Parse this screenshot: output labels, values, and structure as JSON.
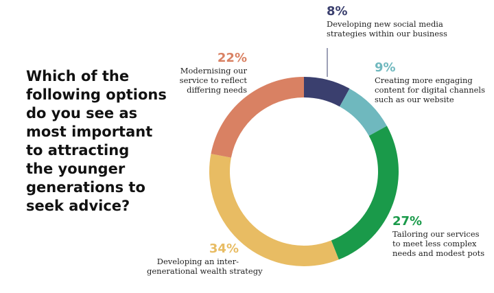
{
  "question": {
    "lines": [
      "Which of the",
      "following options",
      "do you see as",
      "most important",
      "to attracting",
      "the younger",
      "generations to",
      "seek advice?"
    ]
  },
  "chart_data": {
    "type": "pie",
    "variant": "donut",
    "slices": [
      {
        "percent_label": "8%",
        "value": 8,
        "color": "#3a3f6e",
        "description_lines": [
          "Developing new social media",
          "strategies within our business"
        ]
      },
      {
        "percent_label": "9%",
        "value": 9,
        "color": "#6fb8be",
        "description_lines": [
          "Creating more engaging",
          "content for digital channels",
          "such as our website"
        ]
      },
      {
        "percent_label": "27%",
        "value": 27,
        "color": "#1a9a4a",
        "description_lines": [
          "Tailoring our services",
          "to meet less complex",
          "needs and modest pots"
        ]
      },
      {
        "percent_label": "34%",
        "value": 34,
        "color": "#e8bc63",
        "description_lines": [
          "Developing an inter-",
          "generational wealth strategy"
        ]
      },
      {
        "percent_label": "22%",
        "value": 22,
        "color": "#d98163",
        "description_lines": [
          "Modernising our",
          "service to reflect",
          "differing needs"
        ]
      }
    ]
  }
}
